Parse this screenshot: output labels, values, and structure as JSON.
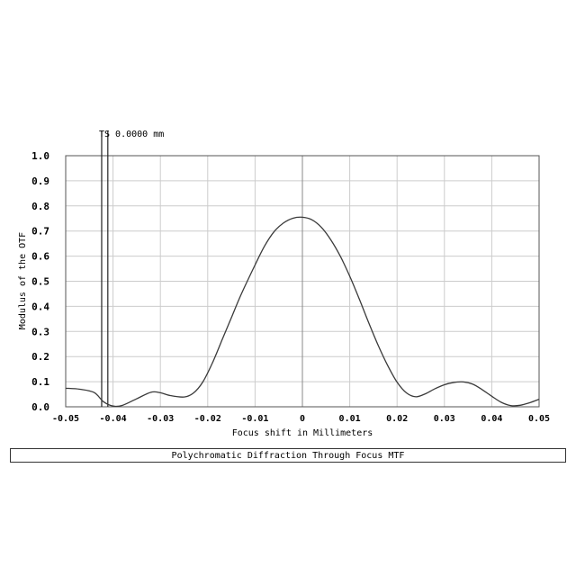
{
  "chart_data": {
    "type": "line",
    "title": "Polychromatic Diffraction Through Focus MTF",
    "xlabel": "Focus shift in Millimeters",
    "ylabel": "Modulus of the OTF",
    "xlim": [
      -0.05,
      0.05
    ],
    "ylim": [
      0.0,
      1.0
    ],
    "grid": true,
    "x_ticks": [
      "-0.05",
      "-0.04",
      "-0.03",
      "-0.02",
      "-0.01",
      "0",
      "0.01",
      "0.02",
      "0.03",
      "0.04",
      "0.05"
    ],
    "y_ticks": [
      "0.0",
      "0.1",
      "0.2",
      "0.3",
      "0.4",
      "0.5",
      "0.6",
      "0.7",
      "0.8",
      "0.9",
      "1.0"
    ],
    "annotation": "TS 0.0000 mm",
    "marker_lines_x": [
      -0.0424,
      -0.0411
    ],
    "series": [
      {
        "values": [
          {
            "x": -0.05,
            "y": 0.074
          },
          {
            "x": -0.047,
            "y": 0.07
          },
          {
            "x": -0.044,
            "y": 0.057
          },
          {
            "x": -0.042,
            "y": 0.02
          },
          {
            "x": -0.04,
            "y": 0.003
          },
          {
            "x": -0.038,
            "y": 0.006
          },
          {
            "x": -0.035,
            "y": 0.032
          },
          {
            "x": -0.032,
            "y": 0.058
          },
          {
            "x": -0.03,
            "y": 0.056
          },
          {
            "x": -0.028,
            "y": 0.045
          },
          {
            "x": -0.025,
            "y": 0.039
          },
          {
            "x": -0.023,
            "y": 0.055
          },
          {
            "x": -0.021,
            "y": 0.1
          },
          {
            "x": -0.019,
            "y": 0.175
          },
          {
            "x": -0.017,
            "y": 0.265
          },
          {
            "x": -0.015,
            "y": 0.355
          },
          {
            "x": -0.013,
            "y": 0.445
          },
          {
            "x": -0.01,
            "y": 0.565
          },
          {
            "x": -0.008,
            "y": 0.64
          },
          {
            "x": -0.006,
            "y": 0.697
          },
          {
            "x": -0.004,
            "y": 0.732
          },
          {
            "x": -0.002,
            "y": 0.751
          },
          {
            "x": 0.0,
            "y": 0.755
          },
          {
            "x": 0.002,
            "y": 0.745
          },
          {
            "x": 0.004,
            "y": 0.715
          },
          {
            "x": 0.006,
            "y": 0.665
          },
          {
            "x": 0.008,
            "y": 0.6
          },
          {
            "x": 0.01,
            "y": 0.52
          },
          {
            "x": 0.012,
            "y": 0.43
          },
          {
            "x": 0.014,
            "y": 0.335
          },
          {
            "x": 0.016,
            "y": 0.245
          },
          {
            "x": 0.018,
            "y": 0.165
          },
          {
            "x": 0.02,
            "y": 0.098
          },
          {
            "x": 0.022,
            "y": 0.055
          },
          {
            "x": 0.024,
            "y": 0.04
          },
          {
            "x": 0.026,
            "y": 0.052
          },
          {
            "x": 0.028,
            "y": 0.072
          },
          {
            "x": 0.03,
            "y": 0.088
          },
          {
            "x": 0.032,
            "y": 0.097
          },
          {
            "x": 0.034,
            "y": 0.099
          },
          {
            "x": 0.036,
            "y": 0.09
          },
          {
            "x": 0.038,
            "y": 0.068
          },
          {
            "x": 0.04,
            "y": 0.042
          },
          {
            "x": 0.042,
            "y": 0.018
          },
          {
            "x": 0.044,
            "y": 0.005
          },
          {
            "x": 0.046,
            "y": 0.006
          },
          {
            "x": 0.048,
            "y": 0.016
          },
          {
            "x": 0.05,
            "y": 0.03
          }
        ]
      }
    ]
  }
}
